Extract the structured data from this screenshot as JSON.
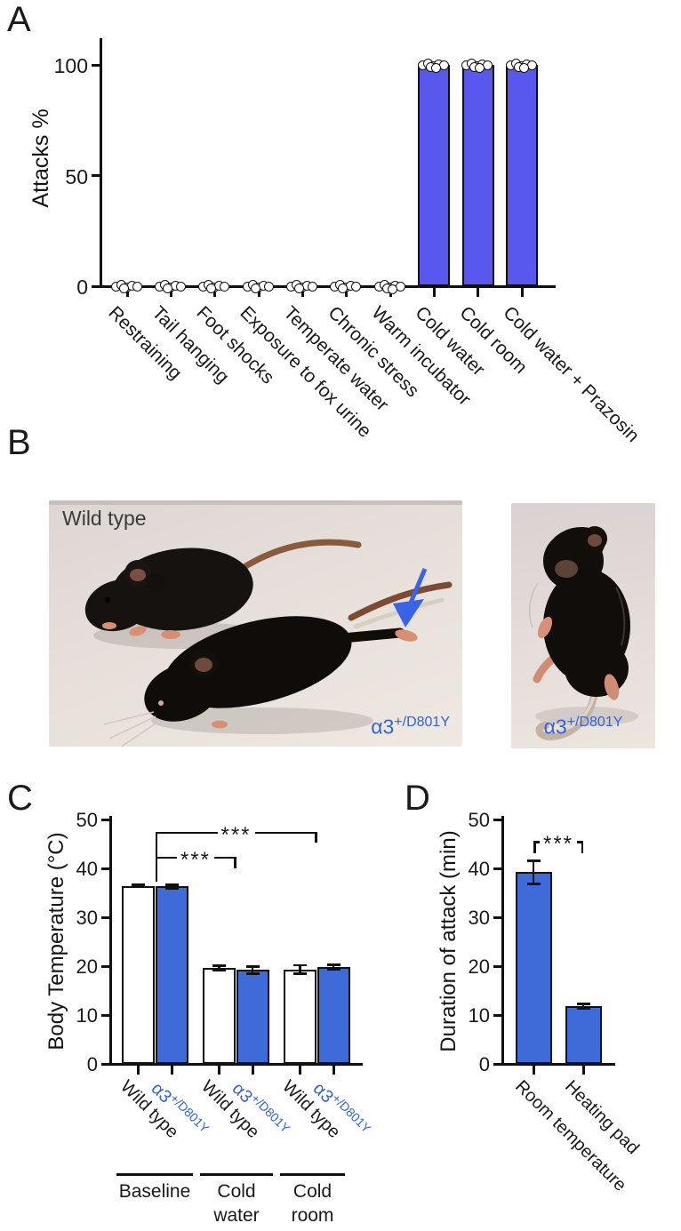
{
  "panels": {
    "a": "A",
    "b": "B",
    "c": "C",
    "d": "D"
  },
  "panel_b": {
    "left_photo": {
      "label": "Wild type",
      "genotype_base": "α3",
      "genotype_sup": "+/D801Y"
    },
    "right_photo": {
      "genotype_base": "α3",
      "genotype_sup": "+/D801Y"
    },
    "arrow_color": "#3a63e8"
  },
  "chart_data": [
    {
      "id": "attacks",
      "type": "bar",
      "title": "",
      "ylabel": "Attacks %",
      "ylim": [
        0,
        112
      ],
      "yticks": [
        0,
        50,
        100
      ],
      "grid": false,
      "legend": null,
      "bar_color": "#5857ee",
      "point_style": "open-circle",
      "categories": [
        "Restraining",
        "Tail hanging",
        "Foot shocks",
        "Exposure to fox urine",
        "Temperate water",
        "Chronic stress",
        "Warm incubator",
        "Cold water",
        "Cold room",
        "Cold water + Prazosin"
      ],
      "values": [
        0,
        0,
        0,
        0,
        0,
        0,
        0,
        100,
        100,
        100
      ],
      "points_per_category": [
        6,
        6,
        6,
        6,
        6,
        6,
        7,
        7,
        7,
        7
      ]
    },
    {
      "id": "body-temperature",
      "type": "bar",
      "ylabel": "Body Temperature (°C)",
      "ylim": [
        0,
        50
      ],
      "yticks": [
        0,
        10,
        20,
        30,
        40,
        50
      ],
      "grid": false,
      "bars": [
        {
          "label": "Wild type",
          "label_color": "#1a1a1a",
          "group": 0,
          "value": 36.4,
          "error": 0.2,
          "fill": "#ffffff"
        },
        {
          "label": "α3",
          "label_sup": "+/D801Y",
          "label_color": "#3263dd",
          "group": 0,
          "value": 36.3,
          "error": 0.4,
          "fill": "#3d6cd8"
        },
        {
          "label": "Wild type",
          "label_color": "#1a1a1a",
          "group": 1,
          "value": 19.6,
          "error": 0.5,
          "fill": "#ffffff"
        },
        {
          "label": "α3",
          "label_sup": "+/D801Y",
          "label_color": "#3263dd",
          "group": 1,
          "value": 19.2,
          "error": 0.8,
          "fill": "#3d6cd8"
        },
        {
          "label": "Wild type",
          "label_color": "#1a1a1a",
          "group": 2,
          "value": 19.3,
          "error": 0.9,
          "fill": "#ffffff"
        },
        {
          "label": "α3",
          "label_sup": "+/D801Y",
          "label_color": "#3263dd",
          "group": 2,
          "value": 19.8,
          "error": 0.5,
          "fill": "#3d6cd8"
        }
      ],
      "groups": [
        {
          "label_line1": "Baseline",
          "label_line2": ""
        },
        {
          "label_line1": "Cold",
          "label_line2": "water"
        },
        {
          "label_line1": "Cold",
          "label_line2": "room"
        }
      ],
      "significance": [
        {
          "label": "***",
          "from_group": 0,
          "to_group": 1,
          "y_value": 42.4
        },
        {
          "label": "***",
          "from_group": 0,
          "to_group": 2,
          "y_value": 47.5
        }
      ]
    },
    {
      "id": "attack-duration",
      "type": "bar",
      "ylabel": "Duration of attack (min)",
      "ylim": [
        0,
        50
      ],
      "yticks": [
        0,
        10,
        20,
        30,
        40,
        50
      ],
      "grid": false,
      "bar_color": "#3d6cd8",
      "bars": [
        {
          "label": "Room temperature",
          "value": 39.2,
          "error": 2.4,
          "fill": "#3d6cd8"
        },
        {
          "label": "Heating pad",
          "value": 11.8,
          "error": 0.5,
          "fill": "#3d6cd8"
        }
      ],
      "significance": [
        {
          "label": "***",
          "from": 0,
          "to": 1,
          "y_value": 45.6
        }
      ]
    }
  ]
}
